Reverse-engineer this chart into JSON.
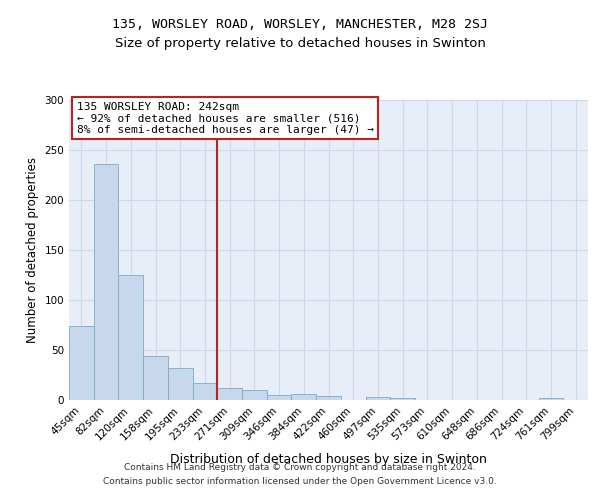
{
  "title1": "135, WORSLEY ROAD, WORSLEY, MANCHESTER, M28 2SJ",
  "title2": "Size of property relative to detached houses in Swinton",
  "xlabel": "Distribution of detached houses by size in Swinton",
  "ylabel": "Number of detached properties",
  "bar_labels": [
    "45sqm",
    "82sqm",
    "120sqm",
    "158sqm",
    "195sqm",
    "233sqm",
    "271sqm",
    "309sqm",
    "346sqm",
    "384sqm",
    "422sqm",
    "460sqm",
    "497sqm",
    "535sqm",
    "573sqm",
    "610sqm",
    "648sqm",
    "686sqm",
    "724sqm",
    "761sqm",
    "799sqm"
  ],
  "bar_values": [
    74,
    236,
    125,
    44,
    32,
    17,
    12,
    10,
    5,
    6,
    4,
    0,
    3,
    2,
    0,
    0,
    0,
    0,
    0,
    2,
    0
  ],
  "bar_color": "#c8d8ec",
  "bar_edge_color": "#7aaac8",
  "vline_color": "#bb2222",
  "annotation_text": "135 WORSLEY ROAD: 242sqm\n← 92% of detached houses are smaller (516)\n8% of semi-detached houses are larger (47) →",
  "annotation_box_color": "#ffffff",
  "annotation_border_color": "#bb2222",
  "ylim": [
    0,
    300
  ],
  "yticks": [
    0,
    50,
    100,
    150,
    200,
    250,
    300
  ],
  "grid_color": "#ccd8e8",
  "background_color": "#e8eef8",
  "footer_line1": "Contains HM Land Registry data © Crown copyright and database right 2024.",
  "footer_line2": "Contains public sector information licensed under the Open Government Licence v3.0.",
  "title1_fontsize": 9.5,
  "title2_fontsize": 9.5,
  "tick_fontsize": 7.5,
  "ylabel_fontsize": 8.5,
  "xlabel_fontsize": 9,
  "footer_fontsize": 6.5,
  "annotation_fontsize": 8,
  "vline_x_index": 5.5
}
